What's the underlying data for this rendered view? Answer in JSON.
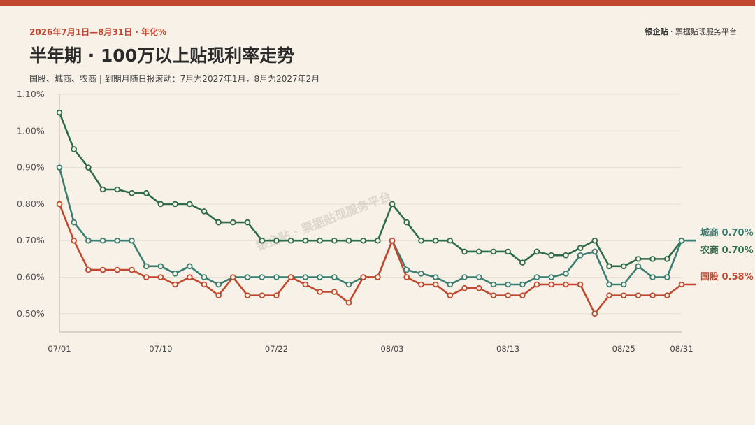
{
  "header": {
    "kicker": "2026年7月1日—8月31日 · 年化%",
    "brand_name": "银企贴",
    "brand_rest": " · 票据贴现服务平台",
    "title": "半年期 · 100万以上贴现利率走势",
    "subtitle": "国股、城商、农商 | 到期月随日报滚动：7月为2027年1月，8月为2027年2月"
  },
  "watermark": "银企贴 · 票据贴现服务平台",
  "colors": {
    "城商": "#3a7d71",
    "农商": "#2e6b4a",
    "国股": "#c1482f",
    "grid": "#e6dfd2",
    "axis": "#b9b2a6"
  },
  "chart_data": {
    "type": "line",
    "ylim": [
      0.45,
      1.1
    ],
    "y_ticks": [
      1.1,
      1.0,
      0.9,
      0.8,
      0.7,
      0.6,
      0.5
    ],
    "y_tick_labels": [
      "1.10%",
      "1.00%",
      "0.90%",
      "0.80%",
      "0.70%",
      "0.60%",
      "0.50%"
    ],
    "x_tick_labels": [
      {
        "index": 0,
        "label": "07/01"
      },
      {
        "index": 7,
        "label": "07/10"
      },
      {
        "index": 15,
        "label": "07/22"
      },
      {
        "index": 23,
        "label": "08/03"
      },
      {
        "index": 31,
        "label": "08/13"
      },
      {
        "index": 39,
        "label": "08/25"
      },
      {
        "index": 43,
        "label": "08/31"
      }
    ],
    "series": [
      {
        "name": "农商",
        "end_label": "农商 0.70%",
        "values": [
          1.05,
          0.95,
          0.9,
          0.84,
          0.84,
          0.83,
          0.83,
          0.8,
          0.8,
          0.8,
          0.78,
          0.75,
          0.75,
          0.75,
          0.7,
          0.7,
          0.7,
          0.7,
          0.7,
          0.7,
          0.7,
          0.7,
          0.7,
          0.8,
          0.75,
          0.7,
          0.7,
          0.7,
          0.67,
          0.67,
          0.67,
          0.67,
          0.64,
          0.67,
          0.66,
          0.66,
          0.68,
          0.7,
          0.63,
          0.63,
          0.65,
          0.65,
          0.65,
          0.7
        ]
      },
      {
        "name": "城商",
        "end_label": "城商 0.70%",
        "values": [
          0.9,
          0.75,
          0.7,
          0.7,
          0.7,
          0.7,
          0.63,
          0.63,
          0.61,
          0.63,
          0.6,
          0.58,
          0.6,
          0.6,
          0.6,
          0.6,
          0.6,
          0.6,
          0.6,
          0.6,
          0.58,
          0.6,
          0.6,
          0.7,
          0.62,
          0.61,
          0.6,
          0.58,
          0.6,
          0.6,
          0.58,
          0.58,
          0.58,
          0.6,
          0.6,
          0.61,
          0.66,
          0.67,
          0.58,
          0.58,
          0.63,
          0.6,
          0.6,
          0.7
        ]
      },
      {
        "name": "国股",
        "end_label": "国股 0.58%",
        "values": [
          0.8,
          0.7,
          0.62,
          0.62,
          0.62,
          0.62,
          0.6,
          0.6,
          0.58,
          0.6,
          0.58,
          0.55,
          0.6,
          0.55,
          0.55,
          0.55,
          0.6,
          0.58,
          0.56,
          0.56,
          0.53,
          0.6,
          0.6,
          0.7,
          0.6,
          0.58,
          0.58,
          0.55,
          0.57,
          0.57,
          0.55,
          0.55,
          0.55,
          0.58,
          0.58,
          0.58,
          0.58,
          0.5,
          0.55,
          0.55,
          0.55,
          0.55,
          0.55,
          0.58
        ]
      }
    ]
  }
}
